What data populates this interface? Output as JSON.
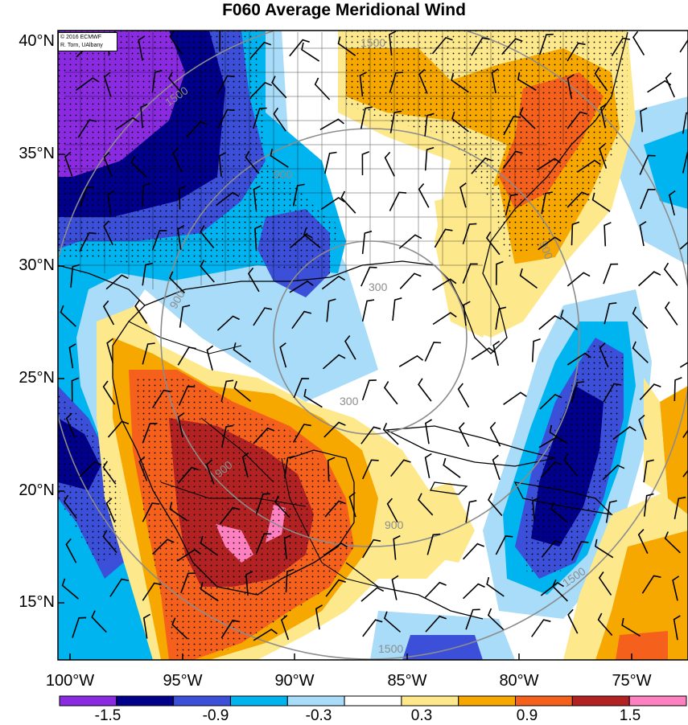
{
  "title": "F060 Average Meridional Wind",
  "credit": {
    "line1": "© 2016 ECMWF",
    "line2": "R. Torn, UAlbany"
  },
  "lat_labels": [
    "40°N",
    "35°N",
    "30°N",
    "25°N",
    "20°N",
    "15°N"
  ],
  "lon_labels": [
    "100°W",
    "95°W",
    "90°W",
    "85°W",
    "80°W",
    "75°W"
  ],
  "contour_labels": [
    "300",
    "300",
    "900",
    "900",
    "900",
    "900",
    "900",
    "1500",
    "1500",
    "1500",
    "1500"
  ],
  "colorbar": {
    "labels": [
      "-1.5",
      "-0.9",
      "-0.3",
      "0.3",
      "0.9",
      "1.5"
    ],
    "colors": [
      "#8a2be2",
      "#00008b",
      "#3b4fd8",
      "#00b4f0",
      "#a8dcf8",
      "#ffffff",
      "#fde98c",
      "#f7a800",
      "#f5601c",
      "#b22222",
      "#ff80c0"
    ]
  },
  "palette": {
    "purple": "#8a2be2",
    "navy": "#00008b",
    "blue": "#3b4fd8",
    "cyan": "#00b4f0",
    "lightblue": "#a8dcf8",
    "white": "#ffffff",
    "yellow": "#fde98c",
    "orange": "#f7a800",
    "redorange": "#f5601c",
    "darkred": "#b22222",
    "pink": "#ff80c0"
  }
}
